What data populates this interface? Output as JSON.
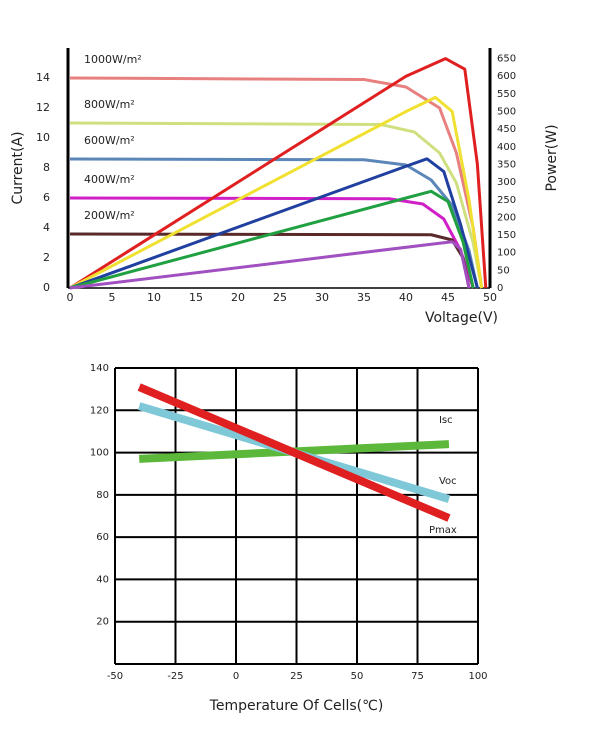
{
  "chart_data": [
    {
      "type": "line",
      "xlabel": "Voltage(V)",
      "ylabel": "Current(A)",
      "y2label": "Power(W)",
      "xlim": [
        0,
        50
      ],
      "xticks": [
        0,
        5,
        10,
        15,
        20,
        25,
        30,
        35,
        40,
        45,
        50
      ],
      "ylim": [
        0,
        16
      ],
      "yticks": [
        0,
        2,
        4,
        6,
        8,
        10,
        12,
        14
      ],
      "y2lim": [
        0,
        680
      ],
      "y2ticks": [
        0,
        50,
        100,
        150,
        200,
        250,
        300,
        350,
        400,
        450,
        500,
        550,
        600,
        650
      ],
      "grid": false,
      "series": [
        {
          "name": "1000W/m²",
          "color": "#e88080",
          "x": [
            0,
            35,
            40,
            44,
            46,
            48,
            49
          ],
          "values": [
            14,
            13.9,
            13.4,
            12,
            9,
            4,
            0
          ]
        },
        {
          "name": "800W/m²",
          "color": "#cfe080",
          "x": [
            0,
            37,
            41,
            44,
            46,
            48,
            49
          ],
          "values": [
            11,
            10.9,
            10.4,
            9,
            7,
            3,
            0
          ]
        },
        {
          "name": "600W/m²",
          "color": "#5b86b8",
          "x": [
            0,
            35,
            40,
            43,
            45.5,
            47.5,
            48.5
          ],
          "values": [
            8.6,
            8.55,
            8.2,
            7.2,
            5.5,
            2.5,
            0
          ]
        },
        {
          "name": "400W/m²",
          "color": "#d020c8",
          "x": [
            0,
            38,
            42,
            44.5,
            46.5,
            48
          ],
          "values": [
            6,
            5.95,
            5.6,
            4.6,
            2.5,
            0
          ]
        },
        {
          "name": "200W/m²",
          "color": "#5a2a2a",
          "x": [
            0,
            43,
            45.5,
            46.8,
            47.5
          ],
          "values": [
            3.6,
            3.55,
            3.2,
            2,
            0
          ]
        },
        {
          "color": "#e02020",
          "axis": "y2",
          "x": [
            0,
            40,
            44.7,
            47,
            48.5,
            49.5
          ],
          "values": [
            0,
            600,
            650,
            620,
            350,
            0
          ]
        },
        {
          "color": "#f0e030",
          "axis": "y2",
          "x": [
            0,
            40,
            43.5,
            45.5,
            47.5,
            49
          ],
          "values": [
            0,
            500,
            540,
            500,
            250,
            0
          ]
        },
        {
          "color": "#2040a0",
          "axis": "y2",
          "x": [
            0,
            40,
            42.5,
            44.5,
            46.5,
            48.5
          ],
          "values": [
            0,
            345,
            366,
            330,
            180,
            0
          ]
        },
        {
          "color": "#20a040",
          "axis": "y2",
          "x": [
            0,
            40,
            43,
            45,
            46.8,
            48
          ],
          "values": [
            0,
            255,
            274,
            245,
            130,
            0
          ]
        },
        {
          "color": "#a050c0",
          "axis": "y2",
          "x": [
            0,
            43,
            45.5,
            46.5,
            47.5
          ],
          "values": [
            0,
            124,
            131,
            110,
            0
          ]
        }
      ]
    },
    {
      "type": "line",
      "xlabel": "Temperature Of Cells(℃)",
      "xlim": [
        -50,
        100
      ],
      "xticks": [
        -50,
        -25,
        0,
        25,
        50,
        75,
        100
      ],
      "ylim": [
        0,
        140
      ],
      "yticks": [
        20,
        40,
        60,
        80,
        100,
        120,
        140
      ],
      "grid": true,
      "series": [
        {
          "name": "Isc",
          "color": "#5cb83a",
          "x": [
            -40,
            88
          ],
          "values": [
            97,
            104
          ]
        },
        {
          "name": "Voc",
          "color": "#7ec8d8",
          "x": [
            -40,
            88
          ],
          "values": [
            122,
            78
          ]
        },
        {
          "name": "Pmax",
          "color": "#e02020",
          "x": [
            -40,
            88
          ],
          "values": [
            131,
            69
          ]
        }
      ]
    }
  ]
}
